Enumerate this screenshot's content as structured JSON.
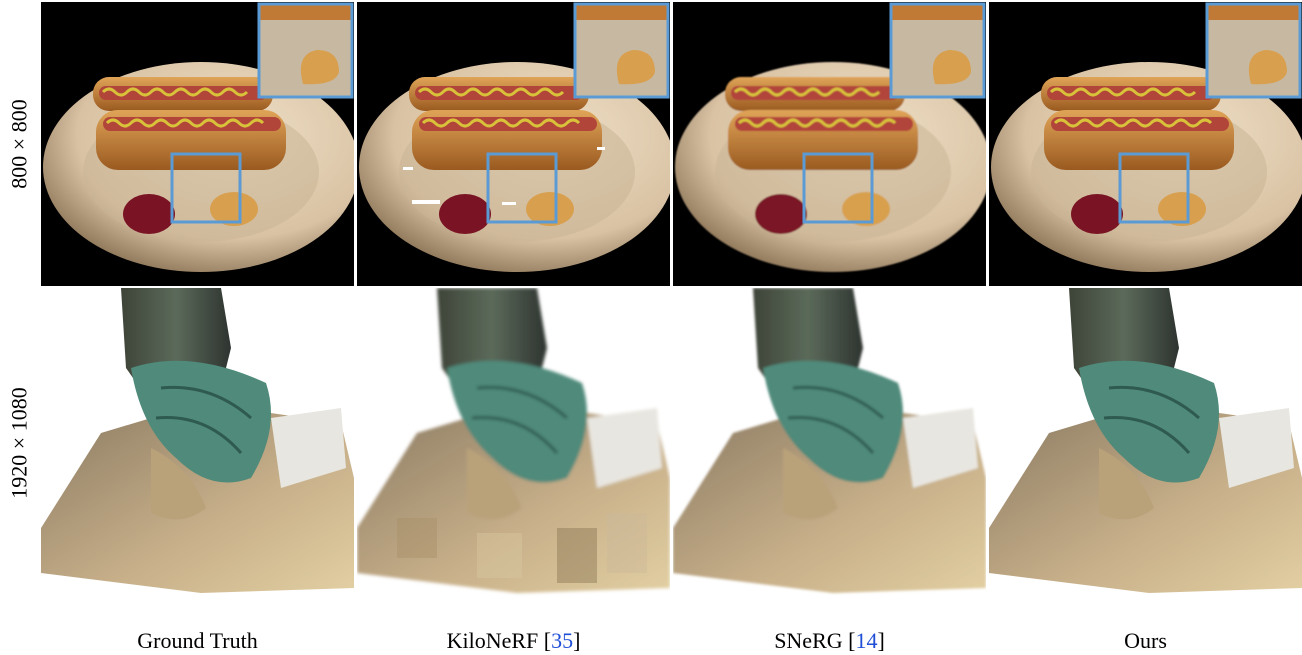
{
  "rows": [
    {
      "label": "800 × 800"
    },
    {
      "label": "1920 × 1080"
    }
  ],
  "columns": [
    {
      "name": "Ground Truth",
      "cite": ""
    },
    {
      "name": "KiloNeRF [",
      "cite": "35",
      "close": "]"
    },
    {
      "name": "SNeRG [",
      "cite": "14",
      "close": "]"
    },
    {
      "name": "Ours",
      "cite": ""
    }
  ],
  "colors": {
    "zoom_box": "#5b9bd5",
    "plate": "#d9c2a3",
    "bun": "#c9863b",
    "sausage": "#b2453a",
    "mustard": "#d8c23a",
    "ketchup": "#7a1425",
    "statue_bronze": "#5b6a5a",
    "patina": "#4f8a7a",
    "stone": "#c8b08a"
  }
}
